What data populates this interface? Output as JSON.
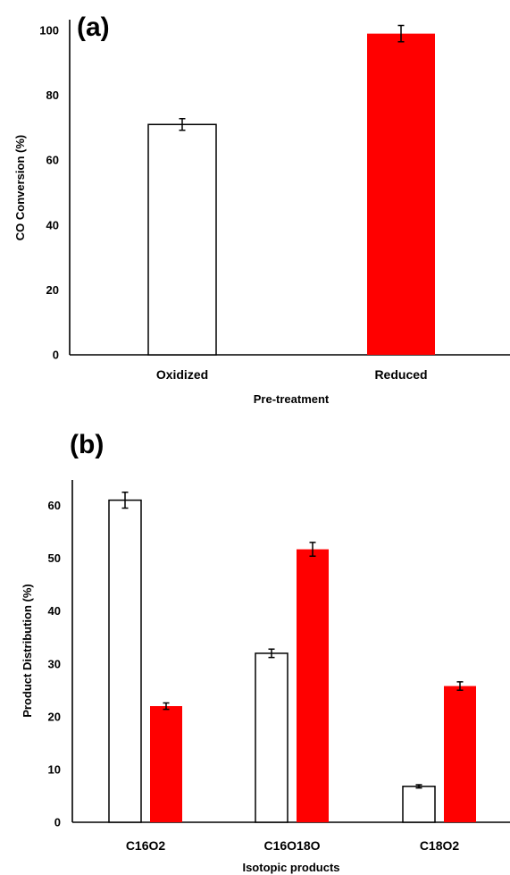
{
  "chart_data": [
    {
      "type": "bar",
      "panel_label": "(a)",
      "categories": [
        "Oxidized",
        "Reduced"
      ],
      "series": [
        {
          "values": [
            71,
            99
          ],
          "errors": [
            1.8,
            2.5
          ],
          "colors": [
            "#ffffff",
            "#ff0000"
          ]
        }
      ],
      "xlabel": "Pre-treatment",
      "ylabel": "CO Conversion (%)",
      "ylim": [
        0,
        100
      ],
      "yticks": [
        0,
        20,
        40,
        60,
        80,
        100
      ],
      "grid": false,
      "legend": "none"
    },
    {
      "type": "bar",
      "panel_label": "(b)",
      "categories": [
        "C16O2",
        "C16O18O",
        "C18O2"
      ],
      "series": [
        {
          "values": [
            61,
            32,
            6.8
          ],
          "errors": [
            1.5,
            0.8,
            0.3
          ],
          "color": "#ffffff"
        },
        {
          "values": [
            22,
            51.7,
            25.8
          ],
          "errors": [
            0.6,
            1.3,
            0.8
          ],
          "color": "#ff0000"
        }
      ],
      "xlabel": "Isotopic products",
      "ylabel": "Product Distribution (%)",
      "ylim": [
        0,
        65
      ],
      "yticks": [
        0,
        10,
        20,
        30,
        40,
        50,
        60
      ],
      "grid": false,
      "legend": "none"
    }
  ]
}
